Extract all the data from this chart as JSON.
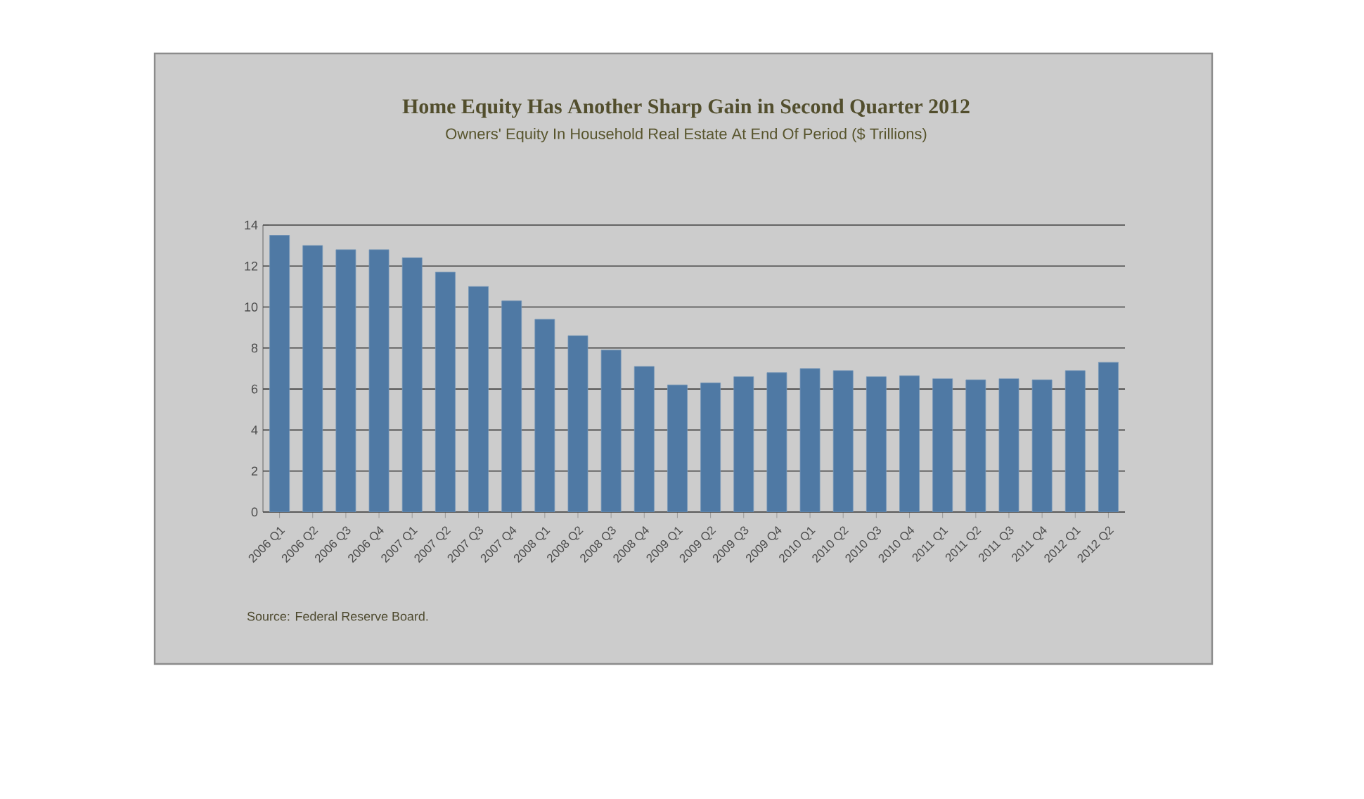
{
  "chart_data": {
    "type": "bar",
    "title": "Home Equity Has Another Sharp Gain in Second Quarter 2012",
    "subtitle": "Owners' Equity In Household Real Estate At End Of Period ($ Trillions)",
    "categories": [
      "2006 Q1",
      "2006 Q2",
      "2006 Q3",
      "2006 Q4",
      "2007 Q1",
      "2007 Q2",
      "2007 Q3",
      "2007 Q4",
      "2008 Q1",
      "2008 Q2",
      "2008 Q3",
      "2008 Q4",
      "2009 Q1",
      "2009 Q2",
      "2009 Q3",
      "2009 Q4",
      "2010 Q1",
      "2010 Q2",
      "2010 Q3",
      "2010 Q4",
      "2011 Q1",
      "2011 Q2",
      "2011 Q3",
      "2011 Q4",
      "2012 Q1",
      "2012 Q2"
    ],
    "values": [
      13.5,
      13.0,
      12.8,
      12.8,
      12.4,
      11.7,
      11.0,
      10.3,
      9.4,
      8.6,
      7.9,
      7.1,
      6.2,
      6.3,
      6.6,
      6.8,
      7.0,
      6.9,
      6.6,
      6.65,
      6.5,
      6.45,
      6.5,
      6.45,
      6.9,
      7.3
    ],
    "color": "#4f79a4",
    "ylim": [
      0,
      14
    ],
    "yticks": [
      0,
      2,
      4,
      6,
      8,
      10,
      12,
      14
    ],
    "grid": "y",
    "annotations": [
      "Source:  Federal Reserve Board."
    ]
  }
}
